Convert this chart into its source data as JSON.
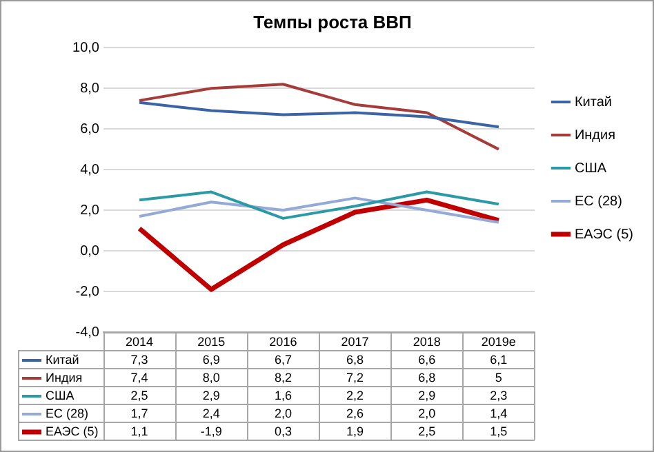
{
  "chart_data": {
    "type": "line",
    "title": "Темпы роста ВВП",
    "categories": [
      "2014",
      "2015",
      "2016",
      "2017",
      "2018",
      "2019e"
    ],
    "series": [
      {
        "name": "Китай",
        "color": "#3a64a4",
        "values": [
          7.3,
          6.9,
          6.7,
          6.8,
          6.6,
          6.1
        ],
        "value_labels": [
          "7,3",
          "6,9",
          "6,7",
          "6,8",
          "6,6",
          "6,1"
        ]
      },
      {
        "name": "Индия",
        "color": "#a63c3a",
        "values": [
          7.4,
          8.0,
          8.2,
          7.2,
          6.8,
          5
        ],
        "value_labels": [
          "7,4",
          "8,0",
          "8,2",
          "7,2",
          "6,8",
          "5"
        ]
      },
      {
        "name": "США",
        "color": "#2b9aa6",
        "values": [
          2.5,
          2.9,
          1.6,
          2.2,
          2.9,
          2.3
        ],
        "value_labels": [
          "2,5",
          "2,9",
          "1,6",
          "2,2",
          "2,9",
          "2,3"
        ]
      },
      {
        "name": "ЕС (28)",
        "color": "#93a9d6",
        "values": [
          1.7,
          2.4,
          2.0,
          2.6,
          2.0,
          1.4
        ],
        "value_labels": [
          "1,7",
          "2,4",
          "2,0",
          "2,6",
          "2,0",
          "1,4"
        ]
      },
      {
        "name": "ЕАЭС (5)",
        "color": "#c00000",
        "values": [
          1.1,
          -1.9,
          0.3,
          1.9,
          2.5,
          1.5
        ],
        "value_labels": [
          "1,1",
          "-1,9",
          "0,3",
          "1,9",
          "2,5",
          "1,5"
        ]
      }
    ],
    "ylim": [
      -4,
      10
    ],
    "yticks": [
      {
        "value": -4,
        "label": "-4,0"
      },
      {
        "value": -2,
        "label": "-2,0"
      },
      {
        "value": 0,
        "label": "0,0"
      },
      {
        "value": 2,
        "label": "2,0"
      },
      {
        "value": 4,
        "label": "4,0"
      },
      {
        "value": 6,
        "label": "6,0"
      },
      {
        "value": 8,
        "label": "8,0"
      },
      {
        "value": 10,
        "label": "10,0"
      }
    ],
    "grid": "y",
    "legend": "right",
    "marker": "none",
    "line_style": "solid"
  }
}
